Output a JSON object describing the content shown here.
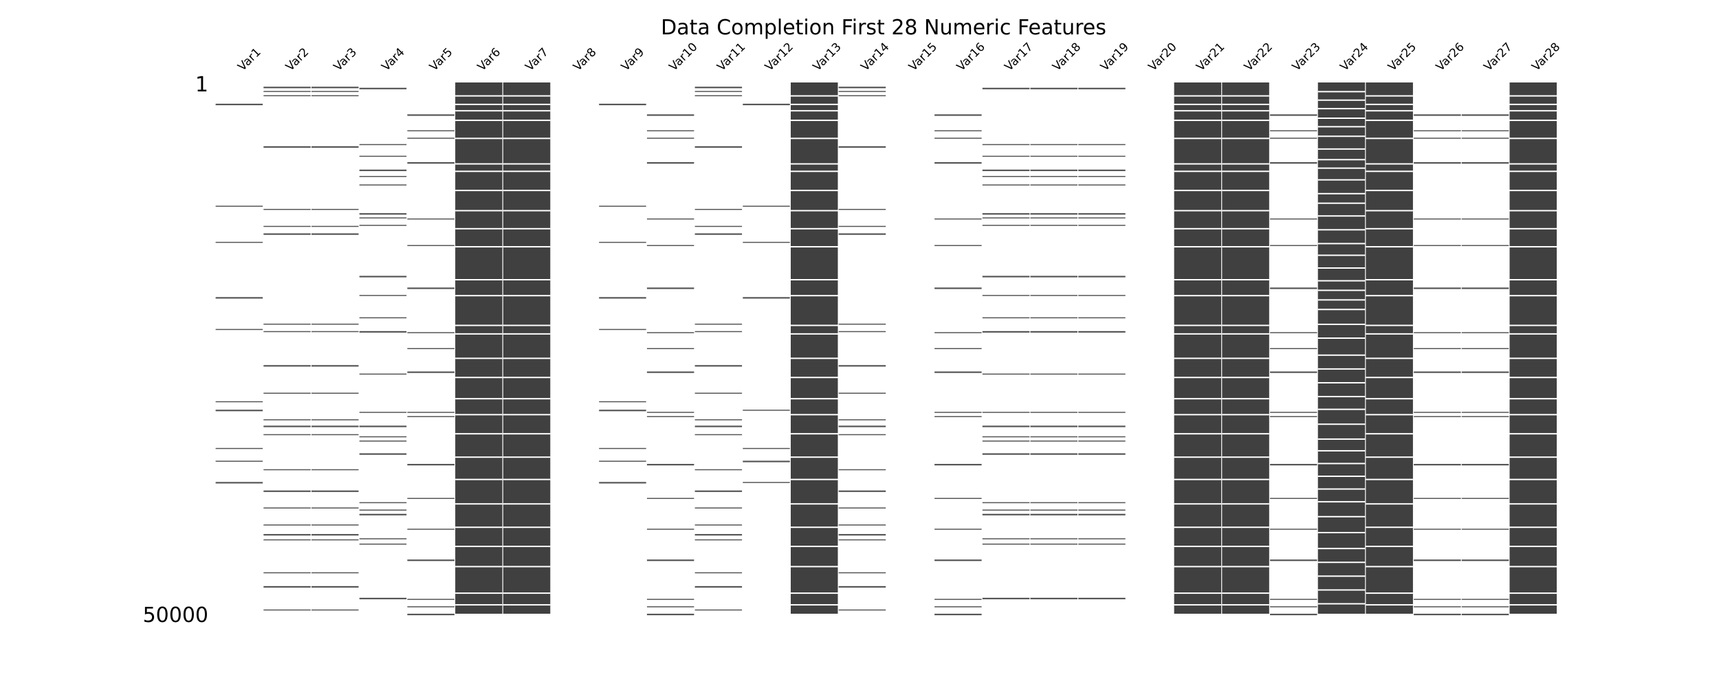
{
  "chart_data": {
    "type": "heatmap",
    "title": "Data Completion First 28 Numeric Features",
    "columns": [
      "Var1",
      "Var2",
      "Var3",
      "Var4",
      "Var5",
      "Var6",
      "Var7",
      "Var8",
      "Var9",
      "Var10",
      "Var11",
      "Var12",
      "Var13",
      "Var14",
      "Var15",
      "Var16",
      "Var17",
      "Var18",
      "Var19",
      "Var20",
      "Var21",
      "Var22",
      "Var23",
      "Var24",
      "Var25",
      "Var26",
      "Var27",
      "Var28"
    ],
    "row_range": [
      1,
      50000
    ],
    "row_labels": {
      "top": "1",
      "bottom": "50000"
    },
    "colors": {
      "present": "#404040",
      "missing": "#ffffff"
    },
    "completeness_pct": [
      1,
      2,
      2,
      2,
      2,
      90,
      90,
      0,
      1,
      2,
      2,
      1,
      90,
      2,
      0,
      2,
      2,
      2,
      2,
      0,
      90,
      90,
      2,
      82,
      90,
      2,
      2,
      90
    ],
    "present_rows": {
      "Var1": [
        2000,
        11600,
        15000,
        20200,
        23200,
        30000,
        30800,
        34400,
        35600,
        37600
      ],
      "Var2": [
        400,
        800,
        1200,
        6000,
        11900,
        13500,
        14200,
        22700,
        23400,
        26600,
        29200,
        31700,
        32300,
        33100,
        36400,
        38400,
        40000,
        41600,
        42500,
        43000,
        46100,
        47400,
        49600
      ],
      "Var3": [
        400,
        800,
        1200,
        6000,
        11900,
        13500,
        14200,
        22700,
        23400,
        26600,
        29200,
        31700,
        32300,
        33100,
        36400,
        38400,
        40000,
        41600,
        42500,
        43000,
        46100,
        47400,
        49600
      ],
      "Var4": [
        500,
        5800,
        6900,
        8200,
        8800,
        9600,
        12300,
        12700,
        13400,
        18200,
        20000,
        22100,
        23400,
        27400,
        31000,
        32300,
        33300,
        33700,
        34900,
        39500,
        40200,
        40600,
        42900,
        43400,
        48500
      ],
      "Var5": [
        3000,
        4500,
        5200,
        7500,
        12800,
        15300,
        19300,
        23500,
        25000,
        27200,
        31000,
        31400,
        35900,
        39100,
        42000,
        44900,
        48600,
        49300,
        50000
      ],
      "Var6": [],
      "Var7": [],
      "Var8": [],
      "Var9": [
        2000,
        11600,
        15000,
        20200,
        23200,
        30000,
        30800,
        34400,
        35600,
        37600
      ],
      "Var10": [
        3000,
        4500,
        5200,
        7500,
        12800,
        15300,
        19300,
        23500,
        25000,
        27200,
        31000,
        31400,
        35900,
        39100,
        42000,
        44900,
        48600,
        49300,
        50000
      ],
      "Var11": [
        400,
        800,
        1200,
        6000,
        11900,
        13500,
        14200,
        22700,
        23400,
        26600,
        29200,
        31700,
        32300,
        33100,
        36400,
        38400,
        40000,
        41600,
        42500,
        43000,
        46100,
        47400,
        49600
      ],
      "Var12": [
        2000,
        11600,
        15000,
        20200,
        30800,
        34400,
        35600,
        37600
      ],
      "Var13": [],
      "Var14": [
        400,
        800,
        1200,
        6000,
        11900,
        13500,
        14200,
        22700,
        23400,
        26600,
        29200,
        31700,
        32300,
        33100,
        36400,
        38400,
        40000,
        41600,
        42500,
        43000,
        46100,
        47400,
        49600
      ],
      "Var15": [],
      "Var16": [
        3000,
        4500,
        5200,
        7500,
        12800,
        15300,
        19300,
        23500,
        25000,
        27200,
        31000,
        31400,
        35900,
        39100,
        42000,
        44900,
        48600,
        49300,
        50000
      ],
      "Var17": [
        500,
        5800,
        6900,
        8200,
        8800,
        9600,
        12300,
        12700,
        13400,
        18200,
        20000,
        22100,
        23400,
        27400,
        31000,
        32300,
        33300,
        33700,
        34900,
        39500,
        40200,
        40600,
        42900,
        43400,
        48500
      ],
      "Var18": [
        500,
        5800,
        6900,
        8200,
        8800,
        9600,
        12300,
        12700,
        13400,
        18200,
        20000,
        22100,
        23400,
        27400,
        31000,
        32300,
        33300,
        33700,
        34900,
        39500,
        40200,
        40600,
        42900,
        43400,
        48500
      ],
      "Var19": [
        500,
        5800,
        6900,
        8200,
        8800,
        9600,
        12300,
        12700,
        13400,
        18200,
        20000,
        22100,
        23400,
        27400,
        31000,
        32300,
        33300,
        33700,
        34900,
        39500,
        40200,
        40600,
        42900,
        43400,
        48500
      ],
      "Var20": [],
      "Var21": [],
      "Var22": [],
      "Var23": [
        3000,
        4500,
        5200,
        7500,
        12800,
        15300,
        19300,
        23500,
        25000,
        27200,
        31000,
        31400,
        35900,
        39100,
        42000,
        44900,
        48600,
        49300,
        50000
      ],
      "Var24": [],
      "Var25": [],
      "Var26": [
        3000,
        4500,
        5200,
        7500,
        12800,
        15300,
        19300,
        23500,
        25000,
        27200,
        31000,
        31400,
        35900,
        39100,
        42000,
        44900,
        48600,
        49300,
        50000
      ],
      "Var27": [
        3000,
        4500,
        5200,
        7500,
        12800,
        15300,
        19300,
        23500,
        25000,
        27200,
        31000,
        31400,
        35900,
        39100,
        42000,
        44900,
        48600,
        49300,
        50000
      ],
      "Var28": []
    },
    "missing_rows": {
      "Var1": [],
      "Var2": [],
      "Var3": [],
      "Var4": [],
      "Var5": [],
      "Var6": [
        1200,
        2000,
        2600,
        3500,
        5200,
        7600,
        8300,
        10100,
        12000,
        13700,
        15400,
        18500,
        20000,
        22800,
        23600,
        25900,
        27700,
        29700,
        31200,
        33000,
        35200,
        37300,
        39600,
        41800,
        43600,
        45500,
        48000,
        49100
      ],
      "Var7": [
        1200,
        2000,
        2600,
        3500,
        5200,
        7600,
        8300,
        10100,
        12000,
        13700,
        15400,
        18500,
        20000,
        22800,
        23600,
        25900,
        27700,
        29700,
        31200,
        33000,
        35200,
        37300,
        39600,
        41800,
        43600,
        45500,
        48000,
        49100
      ],
      "Var8": [],
      "Var9": [],
      "Var10": [],
      "Var11": [],
      "Var12": [],
      "Var13": [
        1200,
        2000,
        2600,
        3500,
        5200,
        7600,
        8300,
        10100,
        12000,
        13700,
        15400,
        18500,
        20000,
        22800,
        23600,
        25900,
        27700,
        29700,
        31200,
        33000,
        35200,
        37300,
        39600,
        41800,
        43600,
        45500,
        48000,
        49100
      ],
      "Var14": [],
      "Var15": [],
      "Var16": [],
      "Var17": [],
      "Var18": [],
      "Var19": [],
      "Var20": [],
      "Var21": [
        1200,
        2000,
        2600,
        3500,
        5200,
        7600,
        8300,
        10100,
        12000,
        13700,
        15400,
        18500,
        20000,
        22800,
        23600,
        25900,
        27700,
        29700,
        31200,
        33000,
        35200,
        37300,
        39600,
        41800,
        43600,
        45500,
        48000,
        49100
      ],
      "Var22": [
        1200,
        2000,
        2600,
        3500,
        5200,
        7600,
        8300,
        10100,
        12000,
        13700,
        15400,
        18500,
        20000,
        22800,
        23600,
        25900,
        27700,
        29700,
        31200,
        33000,
        35200,
        37300,
        39600,
        41800,
        43600,
        45500,
        48000,
        49100
      ],
      "Var23": [],
      "Var24": [
        800,
        1600,
        2400,
        3300,
        4100,
        5000,
        6200,
        7200,
        8000,
        9100,
        10400,
        11300,
        12500,
        13800,
        15100,
        16200,
        17400,
        18600,
        19500,
        20400,
        21300,
        22700,
        24000,
        25600,
        26900,
        28200,
        29500,
        30700,
        32100,
        33500,
        34600,
        35800,
        37000,
        38200,
        39400,
        40800,
        42300,
        43800,
        45100,
        46400,
        47700,
        49000
      ],
      "Var25": [
        1200,
        2000,
        2600,
        3500,
        5200,
        7600,
        8300,
        10100,
        12000,
        13700,
        15400,
        18500,
        20000,
        22800,
        23600,
        25900,
        27700,
        29700,
        31200,
        33000,
        35200,
        37300,
        39600,
        41800,
        43600,
        45500,
        48000,
        49100
      ],
      "Var26": [],
      "Var27": [],
      "Var28": [
        1200,
        2000,
        2600,
        3500,
        5200,
        7600,
        8300,
        10100,
        12000,
        13700,
        15400,
        18500,
        20000,
        22800,
        23600,
        25900,
        27700,
        29700,
        31200,
        33000,
        35200,
        37300,
        39600,
        41800,
        43600,
        45500,
        48000,
        49100
      ]
    }
  }
}
